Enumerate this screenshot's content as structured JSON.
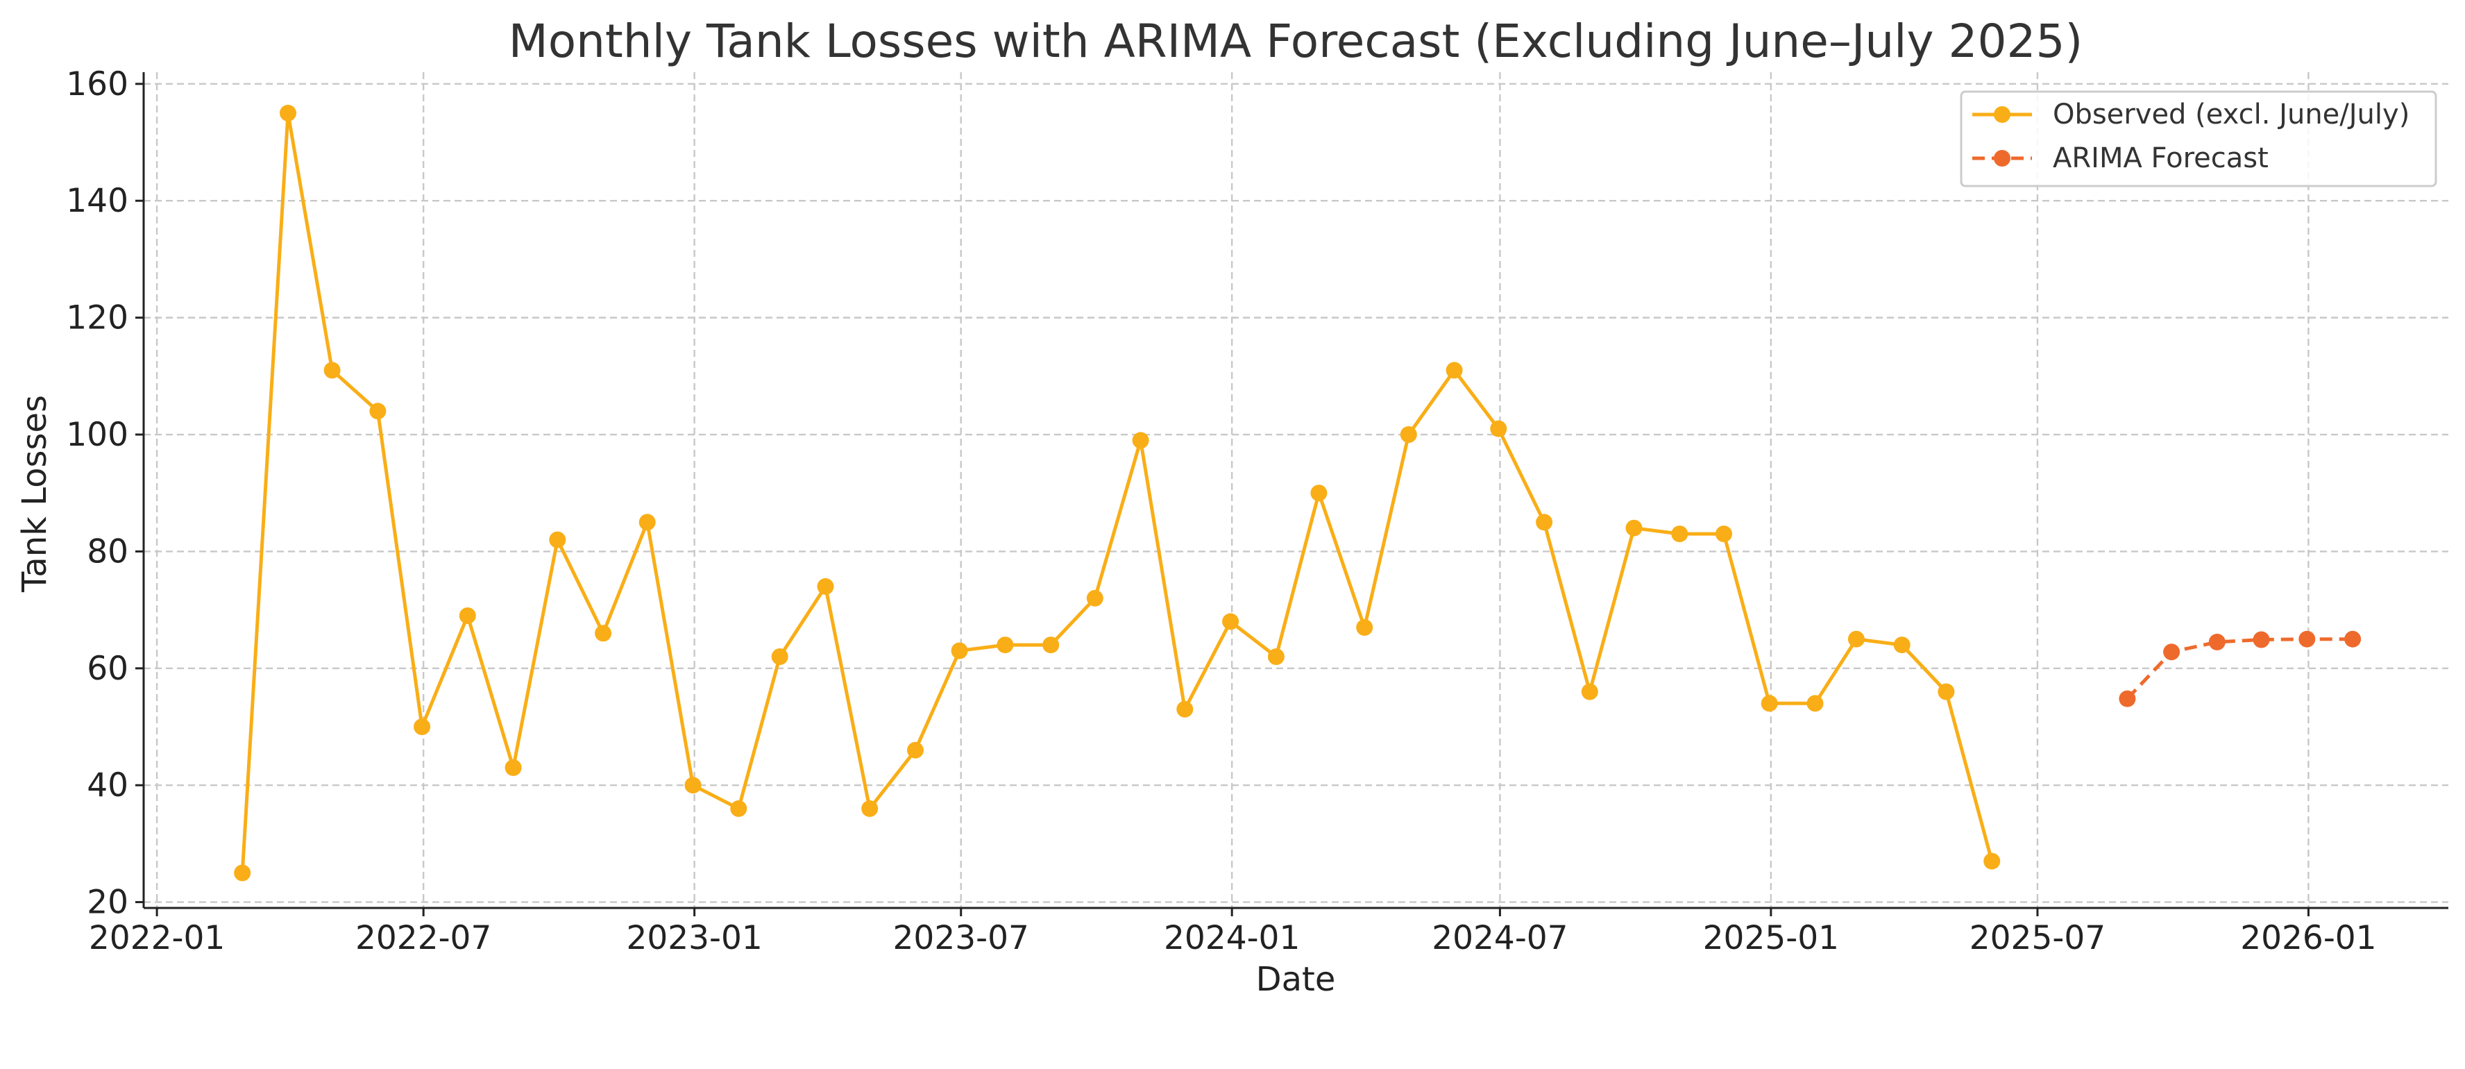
{
  "chart_data": {
    "type": "line",
    "title": "Monthly Tank Losses with ARIMA Forecast (Excluding June–July 2025)",
    "xlabel": "Date",
    "ylabel": "Tank Losses",
    "x_axis_type": "date",
    "xlim": [
      "2021-12-23",
      "2026-04-06"
    ],
    "ylim": [
      19,
      162
    ],
    "xticks": [
      "2022-01",
      "2022-07",
      "2023-01",
      "2023-07",
      "2024-01",
      "2024-07",
      "2025-01",
      "2025-07",
      "2026-01"
    ],
    "yticks": [
      20,
      40,
      60,
      80,
      100,
      120,
      140,
      160
    ],
    "grid": true,
    "legend_position": "top-right",
    "series": [
      {
        "name": "Observed (excl. June/July)",
        "color": "#F9AE17",
        "line_style": "solid",
        "marker": "circle",
        "x": [
          "2022-02-28",
          "2022-03-31",
          "2022-04-30",
          "2022-05-31",
          "2022-06-30",
          "2022-07-31",
          "2022-08-31",
          "2022-09-30",
          "2022-10-31",
          "2022-11-30",
          "2022-12-31",
          "2023-01-31",
          "2023-02-28",
          "2023-03-31",
          "2023-04-30",
          "2023-05-31",
          "2023-06-30",
          "2023-07-31",
          "2023-08-31",
          "2023-09-30",
          "2023-10-31",
          "2023-11-30",
          "2023-12-31",
          "2024-01-31",
          "2024-02-29",
          "2024-03-31",
          "2024-04-30",
          "2024-05-31",
          "2024-06-30",
          "2024-07-31",
          "2024-08-31",
          "2024-09-30",
          "2024-10-31",
          "2024-11-30",
          "2024-12-31",
          "2025-01-31",
          "2025-02-28",
          "2025-03-31",
          "2025-04-30",
          "2025-05-31"
        ],
        "values": [
          25,
          155,
          111,
          104,
          50,
          69,
          43,
          82,
          66,
          85,
          40,
          36,
          62,
          74,
          36,
          46,
          63,
          64,
          64,
          72,
          99,
          53,
          68,
          62,
          90,
          67,
          100,
          111,
          101,
          85,
          56,
          84,
          83,
          83,
          54,
          54,
          65,
          64,
          56,
          27
        ]
      },
      {
        "name": "ARIMA Forecast",
        "color": "#EE6A2C",
        "line_style": "dashed",
        "marker": "circle",
        "x": [
          "2025-08-31",
          "2025-09-30",
          "2025-10-31",
          "2025-11-30",
          "2025-12-31",
          "2026-01-31"
        ],
        "values": [
          54.8,
          62.8,
          64.5,
          64.9,
          65.0,
          65.0
        ]
      }
    ]
  }
}
